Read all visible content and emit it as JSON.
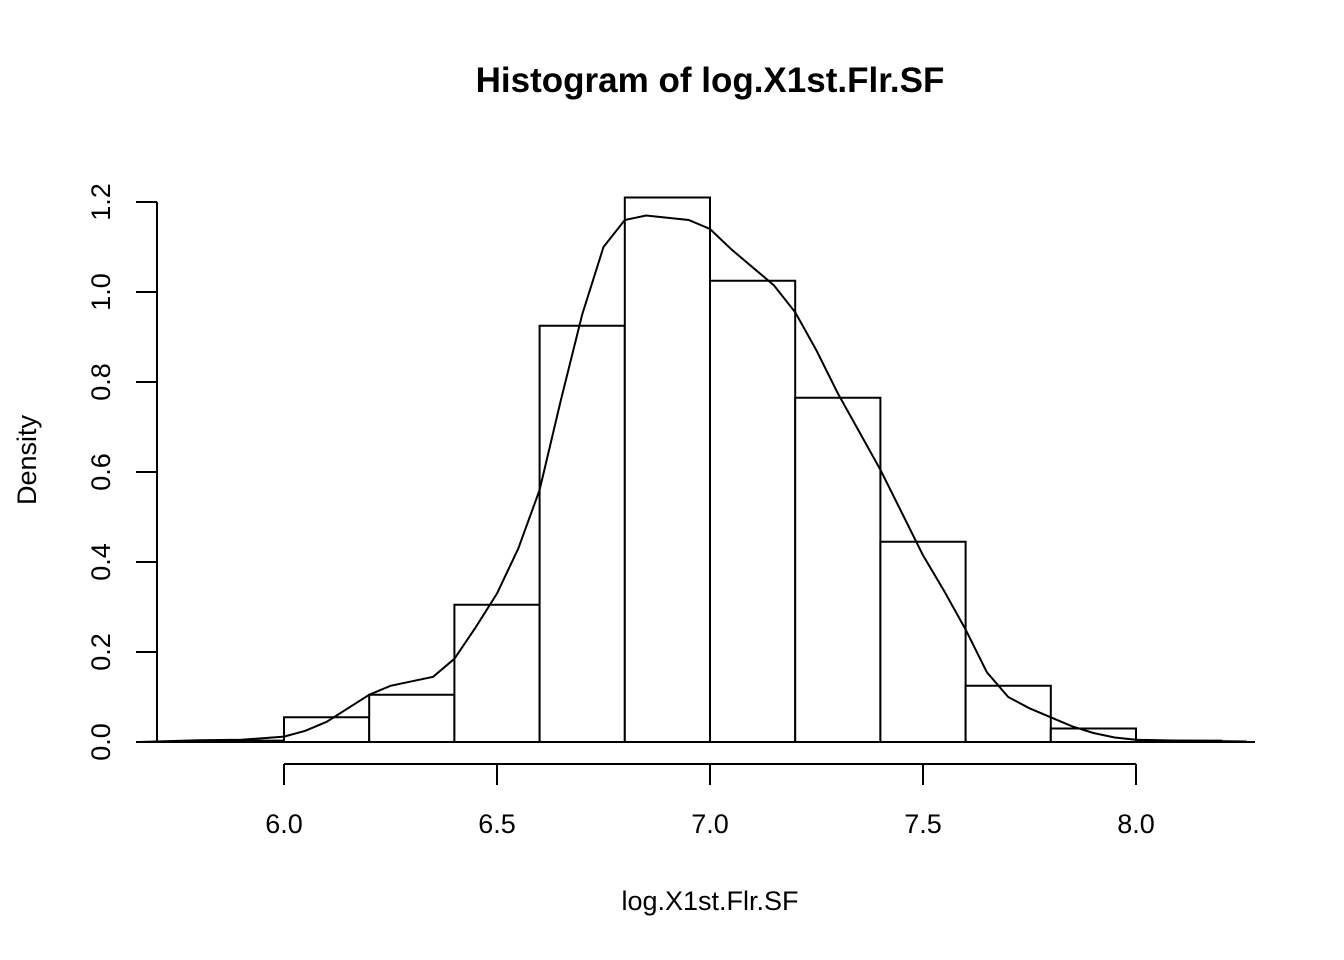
{
  "chart_data": {
    "type": "histogram",
    "title": "Histogram of log.X1st.Flr.SF",
    "xlabel": "log.X1st.Flr.SF",
    "ylabel": "Density",
    "xlim": [
      5.66,
      8.26
    ],
    "ylim": [
      0,
      1.2
    ],
    "x_ticks": [
      6.0,
      6.5,
      7.0,
      7.5,
      8.0
    ],
    "x_tick_labels": [
      "6.0",
      "6.5",
      "7.0",
      "7.5",
      "8.0"
    ],
    "y_ticks": [
      0.0,
      0.2,
      0.4,
      0.6,
      0.8,
      1.0,
      1.2
    ],
    "y_tick_labels": [
      "0.0",
      "0.2",
      "0.4",
      "0.6",
      "0.8",
      "1.0",
      "1.2"
    ],
    "bins": [
      {
        "from": 5.8,
        "to": 6.0,
        "density": 0.003
      },
      {
        "from": 6.0,
        "to": 6.2,
        "density": 0.055
      },
      {
        "from": 6.2,
        "to": 6.4,
        "density": 0.105
      },
      {
        "from": 6.4,
        "to": 6.6,
        "density": 0.305
      },
      {
        "from": 6.6,
        "to": 6.8,
        "density": 0.925
      },
      {
        "from": 6.8,
        "to": 7.0,
        "density": 1.21
      },
      {
        "from": 7.0,
        "to": 7.2,
        "density": 1.025
      },
      {
        "from": 7.2,
        "to": 7.4,
        "density": 0.765
      },
      {
        "from": 7.4,
        "to": 7.6,
        "density": 0.445
      },
      {
        "from": 7.6,
        "to": 7.8,
        "density": 0.125
      },
      {
        "from": 7.8,
        "to": 8.0,
        "density": 0.03
      },
      {
        "from": 8.0,
        "to": 8.2,
        "density": 0.003
      }
    ],
    "density_curve": {
      "x": [
        5.66,
        5.8,
        5.9,
        6.0,
        6.05,
        6.1,
        6.15,
        6.2,
        6.25,
        6.3,
        6.35,
        6.4,
        6.45,
        6.5,
        6.55,
        6.6,
        6.65,
        6.7,
        6.75,
        6.8,
        6.85,
        6.9,
        6.95,
        7.0,
        7.05,
        7.1,
        7.15,
        7.2,
        7.25,
        7.3,
        7.35,
        7.4,
        7.45,
        7.5,
        7.55,
        7.6,
        7.65,
        7.7,
        7.75,
        7.8,
        7.85,
        7.9,
        7.95,
        8.0,
        8.1,
        8.26
      ],
      "y": [
        0.0,
        0.004,
        0.005,
        0.012,
        0.025,
        0.045,
        0.075,
        0.105,
        0.125,
        0.135,
        0.145,
        0.185,
        0.255,
        0.33,
        0.43,
        0.56,
        0.76,
        0.95,
        1.1,
        1.16,
        1.17,
        1.165,
        1.16,
        1.14,
        1.095,
        1.055,
        1.015,
        0.955,
        0.87,
        0.775,
        0.69,
        0.605,
        0.51,
        0.415,
        0.335,
        0.25,
        0.155,
        0.1,
        0.075,
        0.055,
        0.035,
        0.02,
        0.01,
        0.005,
        0.003,
        0.001
      ]
    }
  }
}
